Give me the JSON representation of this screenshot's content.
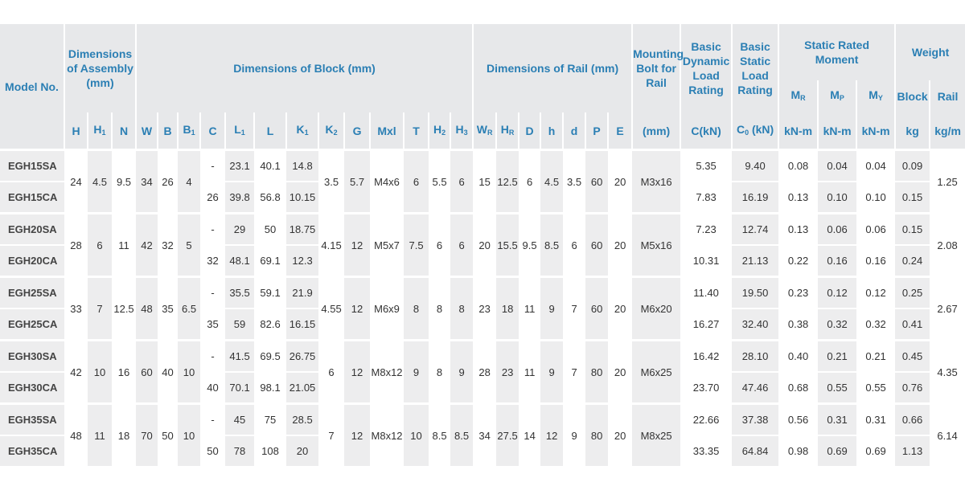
{
  "table": {
    "header": {
      "model": "Model No.",
      "assembly": "Dimensions\nof Assembly\n(mm)",
      "block": "Dimensions of Block (mm)",
      "rail": "Dimensions of Rail (mm)",
      "bolt": "Mounting\nBolt for\nRail",
      "dynamic": "Basic\nDynamic\nLoad\nRating",
      "static": "Basic\nStatic\nLoad\nRating",
      "moment": "Static Rated\nMoment",
      "weight": "Weight",
      "moment_symbols": [
        {
          "symbol": "M",
          "subscript": "R"
        },
        {
          "symbol": "M",
          "subscript": "P"
        },
        {
          "symbol": "M",
          "subscript": "Y"
        }
      ],
      "weight_parts": [
        "Block",
        "Rail"
      ],
      "columns": [
        "H",
        {
          "symbol": "H",
          "subscript": "1"
        },
        "N",
        "W",
        "B",
        {
          "symbol": "B",
          "subscript": "1"
        },
        "C",
        {
          "symbol": "L",
          "subscript": "1"
        },
        "L",
        {
          "symbol": "K",
          "subscript": "1"
        },
        {
          "symbol": "K",
          "subscript": "2"
        },
        "G",
        "Mxl",
        "T",
        {
          "symbol": "H",
          "subscript": "2"
        },
        {
          "symbol": "H",
          "subscript": "3"
        },
        {
          "symbol": "W",
          "subscript": "R"
        },
        {
          "symbol": "H",
          "subscript": "R"
        },
        "D",
        "h",
        "d",
        "P",
        "E",
        "(mm)",
        "C(kN)",
        {
          "symbol": "C",
          "subscript": "0",
          "suffix": " (kN)"
        },
        "kN-m",
        "kN-m",
        "kN-m",
        "kg",
        "kg/m"
      ]
    },
    "groups": [
      {
        "shared": [
          "24",
          "4.5",
          "9.5",
          "34",
          "26",
          "4",
          "3.5",
          "5.7",
          "M4x6",
          "6",
          "5.5",
          "6",
          "15",
          "12.5",
          "6",
          "4.5",
          "3.5",
          "60",
          "20",
          "M3x16",
          "1.25"
        ],
        "rows": [
          [
            "EGH15SA",
            "-",
            "23.1",
            "40.1",
            "14.8",
            "5.35",
            "9.40",
            "0.08",
            "0.04",
            "0.04",
            "0.09"
          ],
          [
            "EGH15CA",
            "26",
            "39.8",
            "56.8",
            "10.15",
            "7.83",
            "16.19",
            "0.13",
            "0.10",
            "0.10",
            "0.15"
          ]
        ]
      },
      {
        "shared": [
          "28",
          "6",
          "11",
          "42",
          "32",
          "5",
          "4.15",
          "12",
          "M5x7",
          "7.5",
          "6",
          "6",
          "20",
          "15.5",
          "9.5",
          "8.5",
          "6",
          "60",
          "20",
          "M5x16",
          "2.08"
        ],
        "rows": [
          [
            "EGH20SA",
            "-",
            "29",
            "50",
            "18.75",
            "7.23",
            "12.74",
            "0.13",
            "0.06",
            "0.06",
            "0.15"
          ],
          [
            "EGH20CA",
            "32",
            "48.1",
            "69.1",
            "12.3",
            "10.31",
            "21.13",
            "0.22",
            "0.16",
            "0.16",
            "0.24"
          ]
        ]
      },
      {
        "shared": [
          "33",
          "7",
          "12.5",
          "48",
          "35",
          "6.5",
          "4.55",
          "12",
          "M6x9",
          "8",
          "8",
          "8",
          "23",
          "18",
          "11",
          "9",
          "7",
          "60",
          "20",
          "M6x20",
          "2.67"
        ],
        "rows": [
          [
            "EGH25SA",
            "-",
            "35.5",
            "59.1",
            "21.9",
            "11.40",
            "19.50",
            "0.23",
            "0.12",
            "0.12",
            "0.25"
          ],
          [
            "EGH25CA",
            "35",
            "59",
            "82.6",
            "16.15",
            "16.27",
            "32.40",
            "0.38",
            "0.32",
            "0.32",
            "0.41"
          ]
        ]
      },
      {
        "shared": [
          "42",
          "10",
          "16",
          "60",
          "40",
          "10",
          "6",
          "12",
          "M8x12",
          "9",
          "8",
          "9",
          "28",
          "23",
          "11",
          "9",
          "7",
          "80",
          "20",
          "M6x25",
          "4.35"
        ],
        "rows": [
          [
            "EGH30SA",
            "-",
            "41.5",
            "69.5",
            "26.75",
            "16.42",
            "28.10",
            "0.40",
            "0.21",
            "0.21",
            "0.45"
          ],
          [
            "EGH30CA",
            "40",
            "70.1",
            "98.1",
            "21.05",
            "23.70",
            "47.46",
            "0.68",
            "0.55",
            "0.55",
            "0.76"
          ]
        ]
      },
      {
        "shared": [
          "48",
          "11",
          "18",
          "70",
          "50",
          "10",
          "7",
          "12",
          "M8x12",
          "10",
          "8.5",
          "8.5",
          "34",
          "27.5",
          "14",
          "12",
          "9",
          "80",
          "20",
          "M8x25",
          "6.14"
        ],
        "rows": [
          [
            "EGH35SA",
            "-",
            "45",
            "75",
            "28.5",
            "22.66",
            "37.38",
            "0.56",
            "0.31",
            "0.31",
            "0.66"
          ],
          [
            "EGH35CA",
            "50",
            "78",
            "108",
            "20",
            "33.35",
            "64.84",
            "0.98",
            "0.69",
            "0.69",
            "1.13"
          ]
        ]
      }
    ]
  }
}
